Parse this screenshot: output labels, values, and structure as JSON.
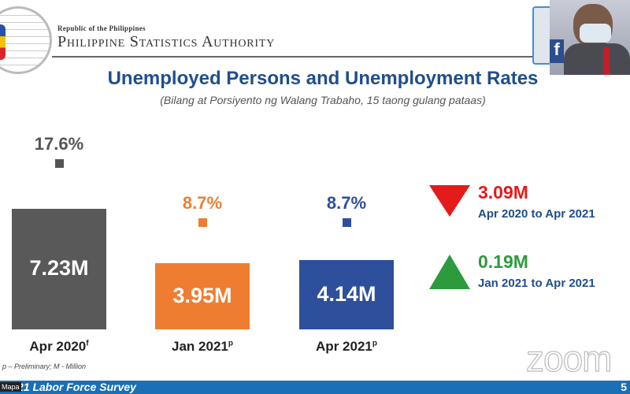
{
  "header": {
    "republic": "Republic of the Philippines",
    "agency": "Philippine Statistics Authority"
  },
  "slide": {
    "title": "Unemployed Persons and Unemployment Rates",
    "subtitle": "(Bilang at Porsiyento ng Walang Trabaho, 15 taong gulang pataas)",
    "footnote": "p – Preliminary; M - Million",
    "footer": "21 Labor Force Survey",
    "page": "5"
  },
  "chart_data": {
    "type": "bar",
    "title": "Unemployed Persons and Unemployment Rates",
    "categories": [
      "Apr 2020",
      "Jan 2021",
      "Apr 2021"
    ],
    "category_marks": [
      "f",
      "p",
      "p"
    ],
    "unit": "M",
    "values": [
      7.23,
      3.95,
      4.14
    ],
    "value_labels": [
      "7.23M",
      "3.95M",
      "4.14M"
    ],
    "rates": [
      17.6,
      8.7,
      8.7
    ],
    "rate_labels": [
      "17.6%",
      "8.7%",
      "8.7%"
    ],
    "colors": [
      "#595959",
      "#ee7d31",
      "#2e4f9b"
    ],
    "rate_colors": [
      "#555555",
      "#ee7d31",
      "#2e4f9b"
    ]
  },
  "changes": [
    {
      "direction": "down",
      "value": "3.09M",
      "period": "Apr 2020 to Apr 2021",
      "color": "#e31b1b"
    },
    {
      "direction": "up",
      "value": "0.19M",
      "period": "Jan 2021 to Apr 2021",
      "color": "#2e9a3e"
    }
  ],
  "zoom": {
    "watermark": "zoom",
    "participant": "Mapa"
  }
}
